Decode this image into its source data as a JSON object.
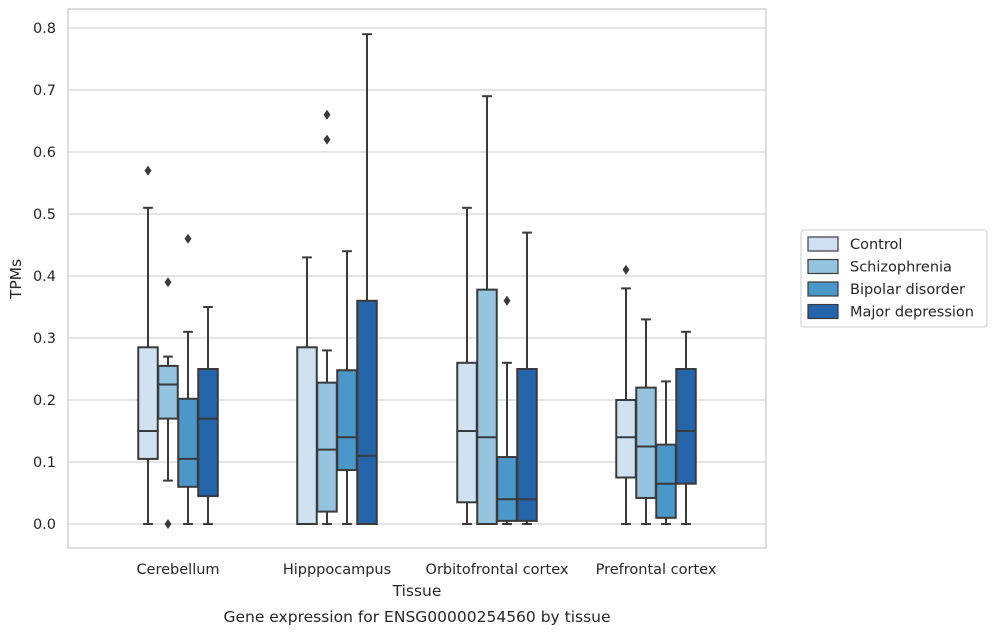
{
  "chart_data": {
    "type": "box",
    "caption": "Gene expression for ENSG00000254560 by tissue",
    "xlabel": "Tissue",
    "ylabel": "TPMs",
    "ylim": [
      -0.04,
      0.83
    ],
    "yticks": [
      0.0,
      0.1,
      0.2,
      0.3,
      0.4,
      0.5,
      0.6,
      0.7,
      0.8
    ],
    "ytick_labels": [
      "0.0",
      "0.1",
      "0.2",
      "0.3",
      "0.4",
      "0.5",
      "0.6",
      "0.7",
      "0.8"
    ],
    "grid": true,
    "legend_position": "right",
    "categories": [
      "Cerebellum",
      "Hipppocampus",
      "Orbitofrontal cortex",
      "Prefrontal cortex"
    ],
    "series": [
      {
        "name": "Control",
        "color": "#d0e1f2",
        "boxes": [
          {
            "min": 0.0,
            "q1": 0.105,
            "median": 0.15,
            "q3": 0.285,
            "max": 0.51,
            "outliers": [
              0.57
            ]
          },
          {
            "min": 0.0,
            "q1": 0.0,
            "median": 0.0,
            "q3": 0.285,
            "max": 0.43,
            "outliers": []
          },
          {
            "min": 0.0,
            "q1": 0.035,
            "median": 0.15,
            "q3": 0.26,
            "max": 0.51,
            "outliers": []
          },
          {
            "min": 0.0,
            "q1": 0.075,
            "median": 0.14,
            "q3": 0.2,
            "max": 0.38,
            "outliers": [
              0.41
            ]
          }
        ]
      },
      {
        "name": "Schizophrenia",
        "color": "#94c4df",
        "boxes": [
          {
            "min": 0.07,
            "q1": 0.17,
            "median": 0.225,
            "q3": 0.255,
            "max": 0.27,
            "outliers": [
              0.39,
              0.0
            ]
          },
          {
            "min": 0.0,
            "q1": 0.02,
            "median": 0.12,
            "q3": 0.228,
            "max": 0.28,
            "outliers": [
              0.62,
              0.66
            ]
          },
          {
            "min": 0.0,
            "q1": 0.0,
            "median": 0.14,
            "q3": 0.378,
            "max": 0.69,
            "outliers": []
          },
          {
            "min": 0.0,
            "q1": 0.042,
            "median": 0.125,
            "q3": 0.22,
            "max": 0.33,
            "outliers": []
          }
        ]
      },
      {
        "name": "Bipolar disorder",
        "color": "#4a98c9",
        "boxes": [
          {
            "min": 0.0,
            "q1": 0.06,
            "median": 0.105,
            "q3": 0.202,
            "max": 0.31,
            "outliers": [
              0.46
            ]
          },
          {
            "min": 0.0,
            "q1": 0.087,
            "median": 0.14,
            "q3": 0.248,
            "max": 0.44,
            "outliers": []
          },
          {
            "min": 0.0,
            "q1": 0.005,
            "median": 0.04,
            "q3": 0.108,
            "max": 0.26,
            "outliers": [
              0.36
            ]
          },
          {
            "min": 0.0,
            "q1": 0.01,
            "median": 0.065,
            "q3": 0.128,
            "max": 0.23,
            "outliers": []
          }
        ]
      },
      {
        "name": "Major depression",
        "color": "#2464aa",
        "boxes": [
          {
            "min": 0.0,
            "q1": 0.045,
            "median": 0.17,
            "q3": 0.25,
            "max": 0.35,
            "outliers": []
          },
          {
            "min": 0.0,
            "q1": 0.0,
            "median": 0.11,
            "q3": 0.36,
            "max": 0.79,
            "outliers": []
          },
          {
            "min": 0.0,
            "q1": 0.005,
            "median": 0.04,
            "q3": 0.25,
            "max": 0.47,
            "outliers": []
          },
          {
            "min": 0.0,
            "q1": 0.065,
            "median": 0.15,
            "q3": 0.25,
            "max": 0.31,
            "outliers": []
          }
        ]
      }
    ],
    "colors": {
      "edge": "#3a3a3a",
      "grid": "#d4d4d4",
      "frame": "#cccccc",
      "text": "#262626"
    }
  }
}
